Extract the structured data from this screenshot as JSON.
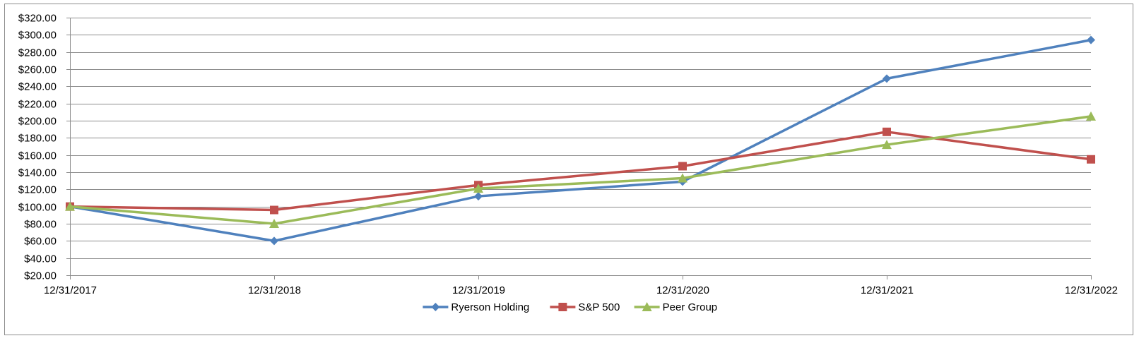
{
  "chart_data": {
    "type": "line",
    "title": "",
    "xlabel": "",
    "ylabel": "",
    "categories": [
      "12/31/2017",
      "12/31/2018",
      "12/31/2019",
      "12/31/2020",
      "12/31/2021",
      "12/31/2022"
    ],
    "ylim": [
      20,
      320
    ],
    "yticks": [
      20,
      40,
      60,
      80,
      100,
      120,
      140,
      160,
      180,
      200,
      220,
      240,
      260,
      280,
      300,
      320
    ],
    "ytick_labels": [
      "$20.00",
      "$40.00",
      "$60.00",
      "$80.00",
      "$100.00",
      "$120.00",
      "$140.00",
      "$160.00",
      "$180.00",
      "$200.00",
      "$220.00",
      "$240.00",
      "$260.00",
      "$280.00",
      "$300.00",
      "$320.00"
    ],
    "grid": true,
    "legend_position": "bottom",
    "series": [
      {
        "name": "Ryerson Holding",
        "color": "#4F81BD",
        "marker": "diamond",
        "values": [
          100,
          60,
          112,
          129,
          249,
          294
        ]
      },
      {
        "name": "S&P 500",
        "color": "#C0504D",
        "marker": "square",
        "values": [
          100,
          96,
          125,
          147,
          187,
          155
        ]
      },
      {
        "name": "Peer Group",
        "color": "#9BBB59",
        "marker": "triangle",
        "values": [
          100,
          80,
          121,
          133,
          172,
          205
        ]
      }
    ]
  }
}
